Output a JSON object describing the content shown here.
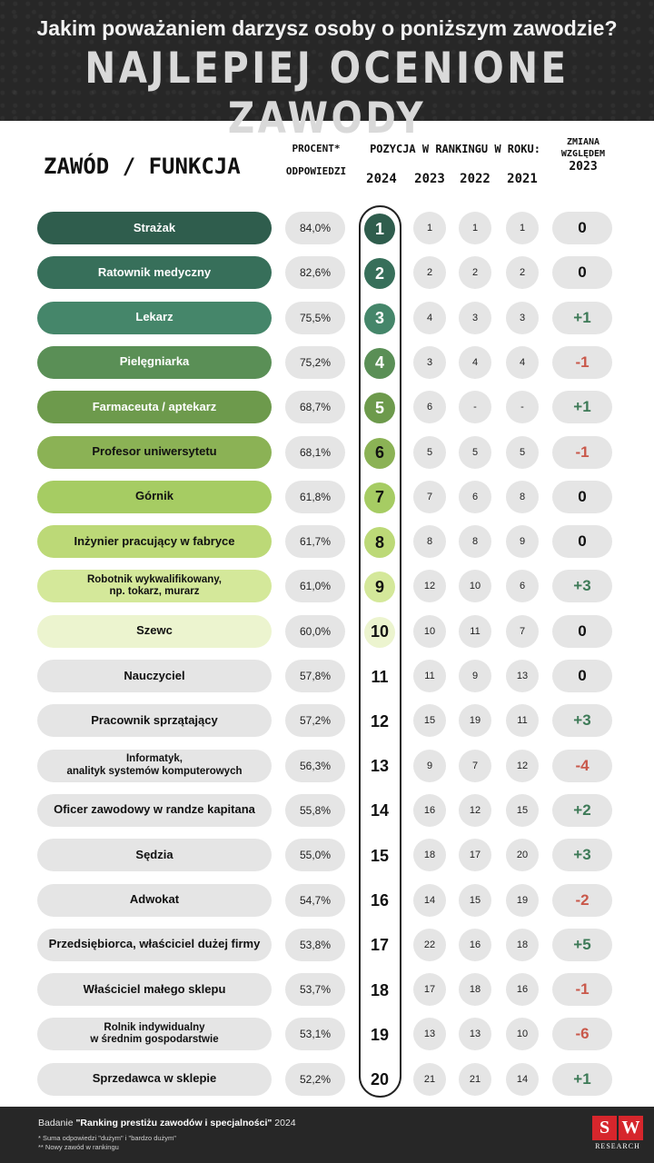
{
  "header": {
    "question": "Jakim poważaniem darzysz osoby o poniższym zawodzie?",
    "title": "NAJLEPIEJ OCENIONE ZAWODY"
  },
  "columns": {
    "zawod": "ZAWÓD / FUNKCJA",
    "procent_line1": "PROCENT*",
    "procent_line2": "ODPOWIEDZI",
    "pozycja": "POZYCJA W RANKINGU W ROKU:",
    "years": [
      "2024",
      "2023",
      "2022",
      "2021"
    ],
    "zmiana_line1": "ZMIANA",
    "zmiana_line2": "WZGLĘDEM",
    "zmiana_line3": "2023"
  },
  "rows": [
    {
      "name": "Strażak",
      "pct": "84,0%",
      "rank": "1",
      "y2023": "1",
      "y2022": "1",
      "y2021": "1",
      "change": "0",
      "bg": "#2f5d4d",
      "fg": "#ffffff",
      "rank_bg": "#2f5d4d",
      "rank_fg": "#ffffff",
      "change_color": "#111111"
    },
    {
      "name": "Ratownik medyczny",
      "pct": "82,6%",
      "rank": "2",
      "y2023": "2",
      "y2022": "2",
      "y2021": "2",
      "change": "0",
      "bg": "#376f5a",
      "fg": "#ffffff",
      "rank_bg": "#376f5a",
      "rank_fg": "#ffffff",
      "change_color": "#111111"
    },
    {
      "name": "Lekarz",
      "pct": "75,5%",
      "rank": "3",
      "y2023": "4",
      "y2022": "3",
      "y2021": "3",
      "change": "+1",
      "bg": "#45866a",
      "fg": "#ffffff",
      "rank_bg": "#45866a",
      "rank_fg": "#ffffff",
      "change_color": "#3d7a57"
    },
    {
      "name": "Pielęgniarka",
      "pct": "75,2%",
      "rank": "4",
      "y2023": "3",
      "y2022": "4",
      "y2021": "4",
      "change": "-1",
      "bg": "#5a8f56",
      "fg": "#ffffff",
      "rank_bg": "#5a8f56",
      "rank_fg": "#ffffff",
      "change_color": "#c9584a"
    },
    {
      "name": "Farmaceuta / aptekarz",
      "pct": "68,7%",
      "rank": "5",
      "y2023": "6",
      "y2022": "-",
      "y2021": "-",
      "change": "+1",
      "bg": "#6d9a4c",
      "fg": "#ffffff",
      "rank_bg": "#6d9a4c",
      "rank_fg": "#ffffff",
      "change_color": "#3d7a57"
    },
    {
      "name": "Profesor uniwersytetu",
      "pct": "68,1%",
      "rank": "6",
      "y2023": "5",
      "y2022": "5",
      "y2021": "5",
      "change": "-1",
      "bg": "#8bb255",
      "fg": "#111111",
      "rank_bg": "#8bb255",
      "rank_fg": "#111111",
      "change_color": "#c9584a"
    },
    {
      "name": "Górnik",
      "pct": "61,8%",
      "rank": "7",
      "y2023": "7",
      "y2022": "6",
      "y2021": "8",
      "change": "0",
      "bg": "#a6cc63",
      "fg": "#111111",
      "rank_bg": "#a6cc63",
      "rank_fg": "#111111",
      "change_color": "#111111"
    },
    {
      "name": "Inżynier pracujący w fabryce",
      "pct": "61,7%",
      "rank": "8",
      "y2023": "8",
      "y2022": "8",
      "y2021": "9",
      "change": "0",
      "bg": "#bcd977",
      "fg": "#111111",
      "rank_bg": "#bcd977",
      "rank_fg": "#111111",
      "change_color": "#111111"
    },
    {
      "name": "Robotnik wykwalifikowany,\nnp. tokarz, murarz",
      "pct": "61,0%",
      "rank": "9",
      "y2023": "12",
      "y2022": "10",
      "y2021": "6",
      "change": "+3",
      "bg": "#d4e89a",
      "fg": "#111111",
      "rank_bg": "#d4e89a",
      "rank_fg": "#111111",
      "change_color": "#3d7a57"
    },
    {
      "name": "Szewc",
      "pct": "60,0%",
      "rank": "10",
      "y2023": "10",
      "y2022": "11",
      "y2021": "7",
      "change": "0",
      "bg": "#ecf4cf",
      "fg": "#111111",
      "rank_bg": "#ecf4cf",
      "rank_fg": "#111111",
      "change_color": "#111111"
    },
    {
      "name": "Nauczyciel",
      "pct": "57,8%",
      "rank": "11",
      "y2023": "11",
      "y2022": "9",
      "y2021": "13",
      "change": "0",
      "bg": "#e5e5e5",
      "fg": "#111111",
      "rank_bg": "transparent",
      "rank_fg": "#111111",
      "change_color": "#111111"
    },
    {
      "name": "Pracownik sprzątający",
      "pct": "57,2%",
      "rank": "12",
      "y2023": "15",
      "y2022": "19",
      "y2021": "11",
      "change": "+3",
      "bg": "#e5e5e5",
      "fg": "#111111",
      "rank_bg": "transparent",
      "rank_fg": "#111111",
      "change_color": "#3d7a57"
    },
    {
      "name": "Informatyk,\nanalityk systemów komputerowych",
      "pct": "56,3%",
      "rank": "13",
      "y2023": "9",
      "y2022": "7",
      "y2021": "12",
      "change": "-4",
      "bg": "#e5e5e5",
      "fg": "#111111",
      "rank_bg": "transparent",
      "rank_fg": "#111111",
      "change_color": "#c9584a"
    },
    {
      "name": "Oficer zawodowy w randze kapitana",
      "pct": "55,8%",
      "rank": "14",
      "y2023": "16",
      "y2022": "12",
      "y2021": "15",
      "change": "+2",
      "bg": "#e5e5e5",
      "fg": "#111111",
      "rank_bg": "transparent",
      "rank_fg": "#111111",
      "change_color": "#3d7a57"
    },
    {
      "name": "Sędzia",
      "pct": "55,0%",
      "rank": "15",
      "y2023": "18",
      "y2022": "17",
      "y2021": "20",
      "change": "+3",
      "bg": "#e5e5e5",
      "fg": "#111111",
      "rank_bg": "transparent",
      "rank_fg": "#111111",
      "change_color": "#3d7a57"
    },
    {
      "name": "Adwokat",
      "pct": "54,7%",
      "rank": "16",
      "y2023": "14",
      "y2022": "15",
      "y2021": "19",
      "change": "-2",
      "bg": "#e5e5e5",
      "fg": "#111111",
      "rank_bg": "transparent",
      "rank_fg": "#111111",
      "change_color": "#c9584a"
    },
    {
      "name": "Przedsiębiorca, właściciel dużej firmy",
      "pct": "53,8%",
      "rank": "17",
      "y2023": "22",
      "y2022": "16",
      "y2021": "18",
      "change": "+5",
      "bg": "#e5e5e5",
      "fg": "#111111",
      "rank_bg": "transparent",
      "rank_fg": "#111111",
      "change_color": "#3d7a57"
    },
    {
      "name": "Właściciel małego sklepu",
      "pct": "53,7%",
      "rank": "18",
      "y2023": "17",
      "y2022": "18",
      "y2021": "16",
      "change": "-1",
      "bg": "#e5e5e5",
      "fg": "#111111",
      "rank_bg": "transparent",
      "rank_fg": "#111111",
      "change_color": "#c9584a"
    },
    {
      "name": "Rolnik indywidualny\nw średnim gospodarstwie",
      "pct": "53,1%",
      "rank": "19",
      "y2023": "13",
      "y2022": "13",
      "y2021": "10",
      "change": "-6",
      "bg": "#e5e5e5",
      "fg": "#111111",
      "rank_bg": "transparent",
      "rank_fg": "#111111",
      "change_color": "#c9584a"
    },
    {
      "name": "Sprzedawca w sklepie",
      "pct": "52,2%",
      "rank": "20",
      "y2023": "21",
      "y2022": "21",
      "y2021": "14",
      "change": "+1",
      "bg": "#e5e5e5",
      "fg": "#111111",
      "rank_bg": "transparent",
      "rank_fg": "#111111",
      "change_color": "#3d7a57"
    }
  ],
  "footer": {
    "prefix": "Badanie ",
    "study": "\"Ranking prestiżu zawodów i specjalności\"",
    "year": " 2024",
    "note1": "*   Suma odpowiedzi \"dużym\" i \"bardzo dużym\"",
    "note2": "**  Nowy zawód w rankingu",
    "logo_s": "S",
    "logo_w": "W",
    "logo_text": "RESEARCH"
  }
}
